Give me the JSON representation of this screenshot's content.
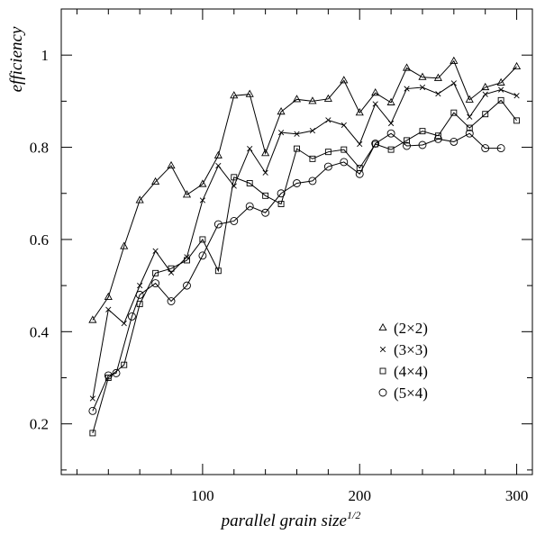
{
  "chart_data": {
    "type": "line",
    "xlabel": "parallel grain size",
    "xlabel_sup": "1/2",
    "ylabel": "efficiency",
    "xlim": [
      10,
      310
    ],
    "ylim": [
      0.09,
      1.1
    ],
    "xticks": [
      100,
      200,
      300
    ],
    "yticks": [
      0.2,
      0.4,
      0.6,
      0.8,
      1
    ],
    "ytick_labels": [
      "0.2",
      "0.4",
      "0.6",
      "0.8",
      "1"
    ],
    "grid": false,
    "legend_position": "lower-right",
    "series": [
      {
        "name": "(2×2)",
        "marker": "triangle",
        "x": [
          30,
          40,
          50,
          60,
          70,
          80,
          90,
          100,
          110,
          120,
          130,
          140,
          150,
          160,
          170,
          180,
          190,
          200,
          210,
          220,
          230,
          240,
          250,
          260,
          270,
          280,
          290,
          300
        ],
        "y": [
          0.425,
          0.475,
          0.585,
          0.685,
          0.725,
          0.76,
          0.697,
          0.72,
          0.782,
          0.912,
          0.915,
          0.787,
          0.877,
          0.904,
          0.9,
          0.905,
          0.945,
          0.875,
          0.918,
          0.897,
          0.972,
          0.952,
          0.95,
          0.987,
          0.903,
          0.93,
          0.94,
          0.975
        ]
      },
      {
        "name": "(3×3)",
        "marker": "cross",
        "x": [
          30,
          40,
          50,
          60,
          70,
          80,
          90,
          100,
          110,
          120,
          130,
          140,
          150,
          160,
          170,
          180,
          190,
          200,
          210,
          220,
          230,
          240,
          250,
          260,
          270,
          280,
          290,
          300
        ],
        "y": [
          0.255,
          0.448,
          0.418,
          0.5,
          0.575,
          0.528,
          0.562,
          0.685,
          0.76,
          0.716,
          0.797,
          0.745,
          0.832,
          0.829,
          0.836,
          0.859,
          0.848,
          0.807,
          0.894,
          0.852,
          0.927,
          0.93,
          0.916,
          0.939,
          0.866,
          0.915,
          0.925,
          0.912
        ]
      },
      {
        "name": "(4×4)",
        "marker": "square",
        "x": [
          30,
          40,
          50,
          60,
          70,
          80,
          90,
          100,
          110,
          120,
          130,
          140,
          150,
          160,
          170,
          180,
          190,
          200,
          210,
          220,
          230,
          240,
          250,
          260,
          270,
          280,
          290,
          300
        ],
        "y": [
          0.18,
          0.3,
          0.328,
          0.46,
          0.527,
          0.537,
          0.555,
          0.6,
          0.532,
          0.735,
          0.722,
          0.695,
          0.677,
          0.797,
          0.775,
          0.79,
          0.795,
          0.755,
          0.807,
          0.795,
          0.815,
          0.835,
          0.825,
          0.875,
          0.842,
          0.872,
          0.902,
          0.858
        ]
      },
      {
        "name": "(5×4)",
        "marker": "circle",
        "x": [
          30,
          40,
          45,
          55,
          60,
          70,
          80,
          90,
          100,
          110,
          120,
          130,
          140,
          150,
          160,
          170,
          180,
          190,
          200,
          210,
          220,
          230,
          240,
          250,
          260,
          270,
          280,
          290
        ],
        "y": [
          0.228,
          0.305,
          0.31,
          0.433,
          0.48,
          0.505,
          0.466,
          0.5,
          0.565,
          0.633,
          0.64,
          0.672,
          0.658,
          0.7,
          0.722,
          0.727,
          0.758,
          0.768,
          0.742,
          0.808,
          0.83,
          0.803,
          0.805,
          0.818,
          0.812,
          0.83,
          0.798,
          0.798
        ]
      }
    ]
  }
}
